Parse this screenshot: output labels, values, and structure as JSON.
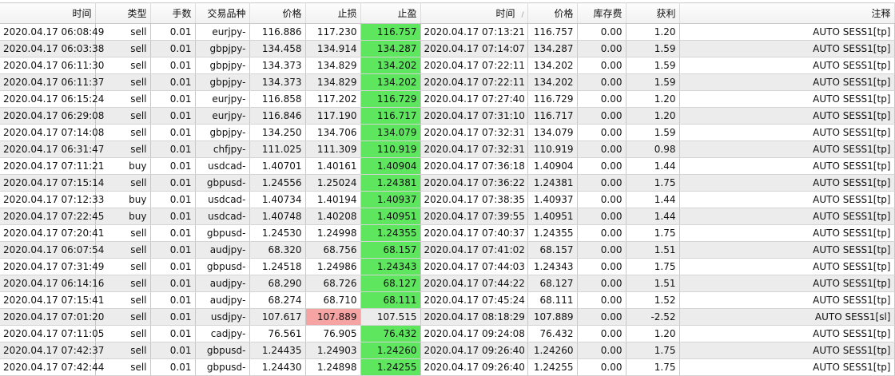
{
  "columns": [
    "时间",
    "类型",
    "手数",
    "交易品种",
    "价格",
    "止损",
    "止盈",
    "时间",
    "价格",
    "库存费",
    "获利",
    "注释"
  ],
  "sort_indicator": "/",
  "colors": {
    "tp_hit": "#5fe65f",
    "sl_hit": "#f5a3a3"
  },
  "rows": [
    {
      "open_time": "2020.04.17 06:08:49",
      "type": "sell",
      "lots": "0.01",
      "symbol": "eurjpy-",
      "open_price": "116.886",
      "sl": "117.230",
      "tp": "116.757",
      "close_time": "2020.04.17 07:13:21",
      "close_price": "116.757",
      "swap": "0.00",
      "profit": "1.20",
      "comment": "AUTO SESS1[tp]",
      "hit": "tp"
    },
    {
      "open_time": "2020.04.17 06:03:38",
      "type": "sell",
      "lots": "0.01",
      "symbol": "gbpjpy-",
      "open_price": "134.458",
      "sl": "134.914",
      "tp": "134.287",
      "close_time": "2020.04.17 07:14:07",
      "close_price": "134.287",
      "swap": "0.00",
      "profit": "1.59",
      "comment": "AUTO SESS1[tp]",
      "hit": "tp"
    },
    {
      "open_time": "2020.04.17 06:11:30",
      "type": "sell",
      "lots": "0.01",
      "symbol": "gbpjpy-",
      "open_price": "134.373",
      "sl": "134.829",
      "tp": "134.202",
      "close_time": "2020.04.17 07:22:11",
      "close_price": "134.202",
      "swap": "0.00",
      "profit": "1.59",
      "comment": "AUTO SESS1[tp]",
      "hit": "tp"
    },
    {
      "open_time": "2020.04.17 06:11:37",
      "type": "sell",
      "lots": "0.01",
      "symbol": "gbpjpy-",
      "open_price": "134.373",
      "sl": "134.829",
      "tp": "134.202",
      "close_time": "2020.04.17 07:22:11",
      "close_price": "134.202",
      "swap": "0.00",
      "profit": "1.59",
      "comment": "AUTO SESS1[tp]",
      "hit": "tp"
    },
    {
      "open_time": "2020.04.17 06:15:24",
      "type": "sell",
      "lots": "0.01",
      "symbol": "eurjpy-",
      "open_price": "116.858",
      "sl": "117.202",
      "tp": "116.729",
      "close_time": "2020.04.17 07:27:40",
      "close_price": "116.729",
      "swap": "0.00",
      "profit": "1.20",
      "comment": "AUTO SESS1[tp]",
      "hit": "tp"
    },
    {
      "open_time": "2020.04.17 06:29:08",
      "type": "sell",
      "lots": "0.01",
      "symbol": "eurjpy-",
      "open_price": "116.846",
      "sl": "117.190",
      "tp": "116.717",
      "close_time": "2020.04.17 07:31:10",
      "close_price": "116.717",
      "swap": "0.00",
      "profit": "1.20",
      "comment": "AUTO SESS1[tp]",
      "hit": "tp"
    },
    {
      "open_time": "2020.04.17 07:14:08",
      "type": "sell",
      "lots": "0.01",
      "symbol": "gbpjpy-",
      "open_price": "134.250",
      "sl": "134.706",
      "tp": "134.079",
      "close_time": "2020.04.17 07:32:31",
      "close_price": "134.079",
      "swap": "0.00",
      "profit": "1.59",
      "comment": "AUTO SESS1[tp]",
      "hit": "tp"
    },
    {
      "open_time": "2020.04.17 06:31:47",
      "type": "sell",
      "lots": "0.01",
      "symbol": "chfjpy-",
      "open_price": "111.025",
      "sl": "111.309",
      "tp": "110.919",
      "close_time": "2020.04.17 07:32:31",
      "close_price": "110.919",
      "swap": "0.00",
      "profit": "0.98",
      "comment": "AUTO SESS1[tp]",
      "hit": "tp"
    },
    {
      "open_time": "2020.04.17 07:11:21",
      "type": "buy",
      "lots": "0.01",
      "symbol": "usdcad-",
      "open_price": "1.40701",
      "sl": "1.40161",
      "tp": "1.40904",
      "close_time": "2020.04.17 07:36:18",
      "close_price": "1.40904",
      "swap": "0.00",
      "profit": "1.44",
      "comment": "AUTO SESS1[tp]",
      "hit": "tp"
    },
    {
      "open_time": "2020.04.17 07:15:14",
      "type": "sell",
      "lots": "0.01",
      "symbol": "gbpusd-",
      "open_price": "1.24556",
      "sl": "1.25024",
      "tp": "1.24381",
      "close_time": "2020.04.17 07:36:22",
      "close_price": "1.24381",
      "swap": "0.00",
      "profit": "1.75",
      "comment": "AUTO SESS1[tp]",
      "hit": "tp"
    },
    {
      "open_time": "2020.04.17 07:12:33",
      "type": "buy",
      "lots": "0.01",
      "symbol": "usdcad-",
      "open_price": "1.40734",
      "sl": "1.40194",
      "tp": "1.40937",
      "close_time": "2020.04.17 07:38:35",
      "close_price": "1.40937",
      "swap": "0.00",
      "profit": "1.44",
      "comment": "AUTO SESS1[tp]",
      "hit": "tp"
    },
    {
      "open_time": "2020.04.17 07:22:45",
      "type": "buy",
      "lots": "0.01",
      "symbol": "usdcad-",
      "open_price": "1.40748",
      "sl": "1.40208",
      "tp": "1.40951",
      "close_time": "2020.04.17 07:39:55",
      "close_price": "1.40951",
      "swap": "0.00",
      "profit": "1.44",
      "comment": "AUTO SESS1[tp]",
      "hit": "tp"
    },
    {
      "open_time": "2020.04.17 07:20:41",
      "type": "sell",
      "lots": "0.01",
      "symbol": "gbpusd-",
      "open_price": "1.24530",
      "sl": "1.24998",
      "tp": "1.24355",
      "close_time": "2020.04.17 07:40:37",
      "close_price": "1.24355",
      "swap": "0.00",
      "profit": "1.75",
      "comment": "AUTO SESS1[tp]",
      "hit": "tp"
    },
    {
      "open_time": "2020.04.17 06:07:54",
      "type": "sell",
      "lots": "0.01",
      "symbol": "audjpy-",
      "open_price": "68.320",
      "sl": "68.756",
      "tp": "68.157",
      "close_time": "2020.04.17 07:41:02",
      "close_price": "68.157",
      "swap": "0.00",
      "profit": "1.51",
      "comment": "AUTO SESS1[tp]",
      "hit": "tp"
    },
    {
      "open_time": "2020.04.17 07:31:49",
      "type": "sell",
      "lots": "0.01",
      "symbol": "gbpusd-",
      "open_price": "1.24518",
      "sl": "1.24986",
      "tp": "1.24343",
      "close_time": "2020.04.17 07:44:03",
      "close_price": "1.24343",
      "swap": "0.00",
      "profit": "1.75",
      "comment": "AUTO SESS1[tp]",
      "hit": "tp"
    },
    {
      "open_time": "2020.04.17 06:14:16",
      "type": "sell",
      "lots": "0.01",
      "symbol": "audjpy-",
      "open_price": "68.290",
      "sl": "68.726",
      "tp": "68.127",
      "close_time": "2020.04.17 07:44:22",
      "close_price": "68.127",
      "swap": "0.00",
      "profit": "1.51",
      "comment": "AUTO SESS1[tp]",
      "hit": "tp"
    },
    {
      "open_time": "2020.04.17 07:15:41",
      "type": "sell",
      "lots": "0.01",
      "symbol": "audjpy-",
      "open_price": "68.274",
      "sl": "68.710",
      "tp": "68.111",
      "close_time": "2020.04.17 07:45:24",
      "close_price": "68.111",
      "swap": "0.00",
      "profit": "1.52",
      "comment": "AUTO SESS1[tp]",
      "hit": "tp"
    },
    {
      "open_time": "2020.04.17 07:01:20",
      "type": "sell",
      "lots": "0.01",
      "symbol": "usdjpy-",
      "open_price": "107.617",
      "sl": "107.889",
      "tp": "107.515",
      "close_time": "2020.04.17 08:18:29",
      "close_price": "107.889",
      "swap": "0.00",
      "profit": "-2.52",
      "comment": "AUTO SESS1[sl]",
      "hit": "sl"
    },
    {
      "open_time": "2020.04.17 07:11:05",
      "type": "sell",
      "lots": "0.01",
      "symbol": "cadjpy-",
      "open_price": "76.561",
      "sl": "76.905",
      "tp": "76.432",
      "close_time": "2020.04.17 09:24:08",
      "close_price": "76.432",
      "swap": "0.00",
      "profit": "1.20",
      "comment": "AUTO SESS1[tp]",
      "hit": "tp"
    },
    {
      "open_time": "2020.04.17 07:42:37",
      "type": "sell",
      "lots": "0.01",
      "symbol": "gbpusd-",
      "open_price": "1.24435",
      "sl": "1.24903",
      "tp": "1.24260",
      "close_time": "2020.04.17 09:26:40",
      "close_price": "1.24260",
      "swap": "0.00",
      "profit": "1.75",
      "comment": "AUTO SESS1[tp]",
      "hit": "tp"
    },
    {
      "open_time": "2020.04.17 07:42:44",
      "type": "sell",
      "lots": "0.01",
      "symbol": "gbpusd-",
      "open_price": "1.24430",
      "sl": "1.24898",
      "tp": "1.24255",
      "close_time": "2020.04.17 09:26:40",
      "close_price": "1.24255",
      "swap": "0.00",
      "profit": "1.75",
      "comment": "AUTO SESS1[tp]",
      "hit": "tp"
    }
  ]
}
